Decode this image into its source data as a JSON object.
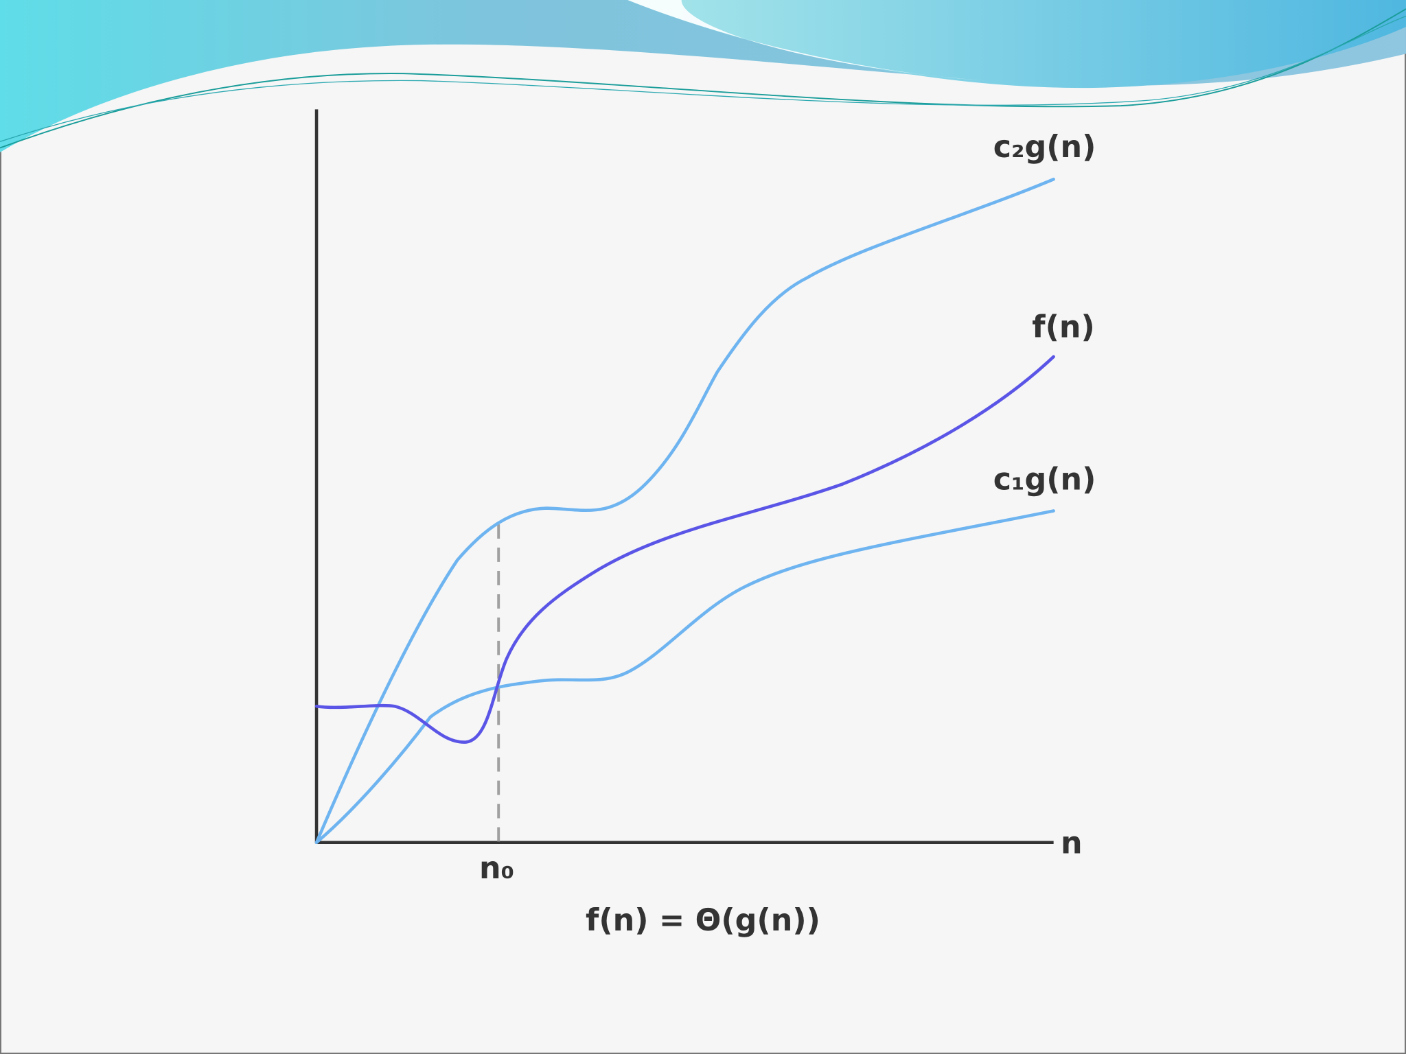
{
  "labels": {
    "upper": "c₂g(n)",
    "function": "f(n)",
    "lower": "c₁g(n)",
    "x_axis": "n",
    "threshold": "n₀"
  },
  "caption": "f(n) = Θ(g(n))"
}
